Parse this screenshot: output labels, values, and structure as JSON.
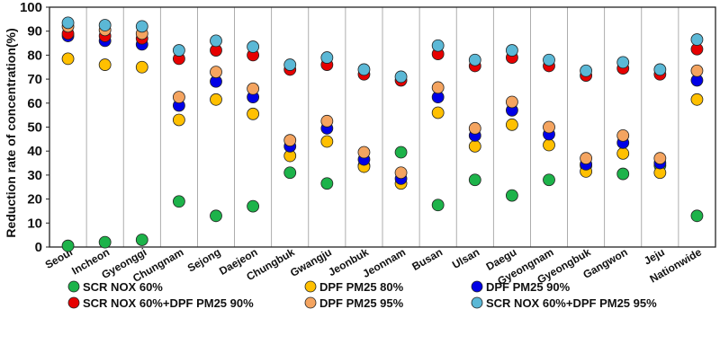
{
  "chart_data": {
    "type": "scatter",
    "title": "",
    "xlabel": "",
    "ylabel": "Reduction rate of concentration(%)",
    "ylim": [
      0,
      100
    ],
    "yticks": [
      0,
      10,
      20,
      30,
      40,
      50,
      60,
      70,
      80,
      90,
      100
    ],
    "grid": "vertical separators between categories",
    "legend_position": "bottom",
    "categories": [
      "Seoul",
      "Incheon",
      "Gyeonggi",
      "Chungnam",
      "Sejong",
      "Daejeon",
      "Chungbuk",
      "Gwangju",
      "Jeonbuk",
      "Jeonnam",
      "Busan",
      "Ulsan",
      "Daegu",
      "Gyeongnam",
      "Gyeongbuk",
      "Gangwon",
      "Jeju",
      "Nationwide"
    ],
    "series": [
      {
        "name": "SCR NOX 60%",
        "color": "#1db34a",
        "values": [
          0.5,
          2,
          3,
          19,
          13,
          17,
          31,
          26.5,
          34,
          39.5,
          17.5,
          28,
          21.5,
          28,
          34,
          30.5,
          34,
          13
        ]
      },
      {
        "name": "DPF PM25 80%",
        "color": "#ffc000",
        "values": [
          78.5,
          76,
          75,
          53,
          61.5,
          55.5,
          38,
          44,
          33.5,
          26.5,
          56,
          42,
          51,
          42.5,
          31.5,
          39,
          31,
          61.5
        ]
      },
      {
        "name": "DPF PM25 90%",
        "color": "#0000e6",
        "values": [
          88,
          86,
          84.5,
          59,
          69,
          62.5,
          42,
          49.5,
          36.5,
          28.5,
          62.5,
          46.5,
          57,
          47,
          34.5,
          43.5,
          35,
          69.5
        ]
      },
      {
        "name": "SCR NOX 60%+DPF PM25 90%",
        "color": "#e60000",
        "values": [
          89,
          88,
          87,
          78.5,
          82,
          80,
          74,
          76,
          72,
          69.5,
          80.5,
          75.5,
          79,
          75.5,
          71.5,
          74.5,
          72,
          82.5
        ]
      },
      {
        "name": "DPF PM25 95%",
        "color": "#f4a460",
        "values": [
          92,
          90.5,
          89,
          62.5,
          73,
          66,
          44.5,
          52.5,
          39.5,
          31,
          66.5,
          49.5,
          60.5,
          50,
          37,
          46.5,
          37,
          73.5
        ]
      },
      {
        "name": "SCR NOX 60%+DPF PM25 95%",
        "color": "#5bb8d6",
        "values": [
          93.5,
          92.5,
          92,
          82,
          86,
          83.5,
          76,
          79,
          74,
          71,
          84,
          78,
          82,
          78,
          73.5,
          77,
          74,
          86.5
        ]
      }
    ]
  }
}
